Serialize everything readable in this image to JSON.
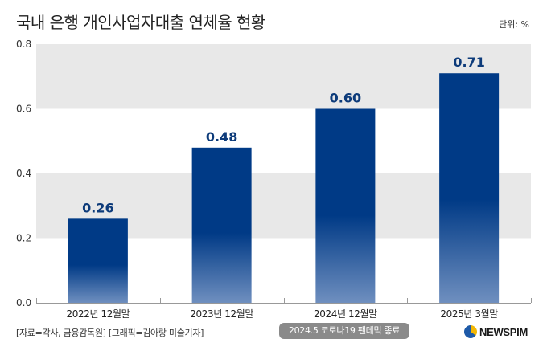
{
  "header": {
    "title": "국내 은행 개인사업자대출 연체율 현황",
    "unit": "단위: %"
  },
  "footer": {
    "source": "[자료=각사, 금융감독원] [그래픽=김아랑 미술기자]",
    "note": "2024.5 코로나19 팬데믹 종료",
    "logo": "NEWSPIM"
  },
  "colors": {
    "bar_top": "#003a86",
    "bar_bottom": "#6f8fbf",
    "band": "#e8e8e8",
    "label": "#0d3b7a"
  },
  "chart_data": {
    "type": "bar",
    "title": "국내 은행 개인사업자대출 연체율 현황",
    "xlabel": "",
    "ylabel": "단위: %",
    "categories": [
      "2022년 12월말",
      "2023년 12월말",
      "2024년 12월말",
      "2025년 3월말"
    ],
    "values": [
      0.26,
      0.48,
      0.6,
      0.71
    ],
    "value_labels": [
      "0.26",
      "0.48",
      "0.60",
      "0.71"
    ],
    "ylim": [
      0,
      0.8
    ],
    "yticks": [
      0.0,
      0.2,
      0.4,
      0.6,
      0.8
    ],
    "ytick_labels": [
      "0.0",
      "0.2",
      "0.4",
      "0.6",
      "0.8"
    ],
    "grid": "alternating bands",
    "legend": "none"
  }
}
